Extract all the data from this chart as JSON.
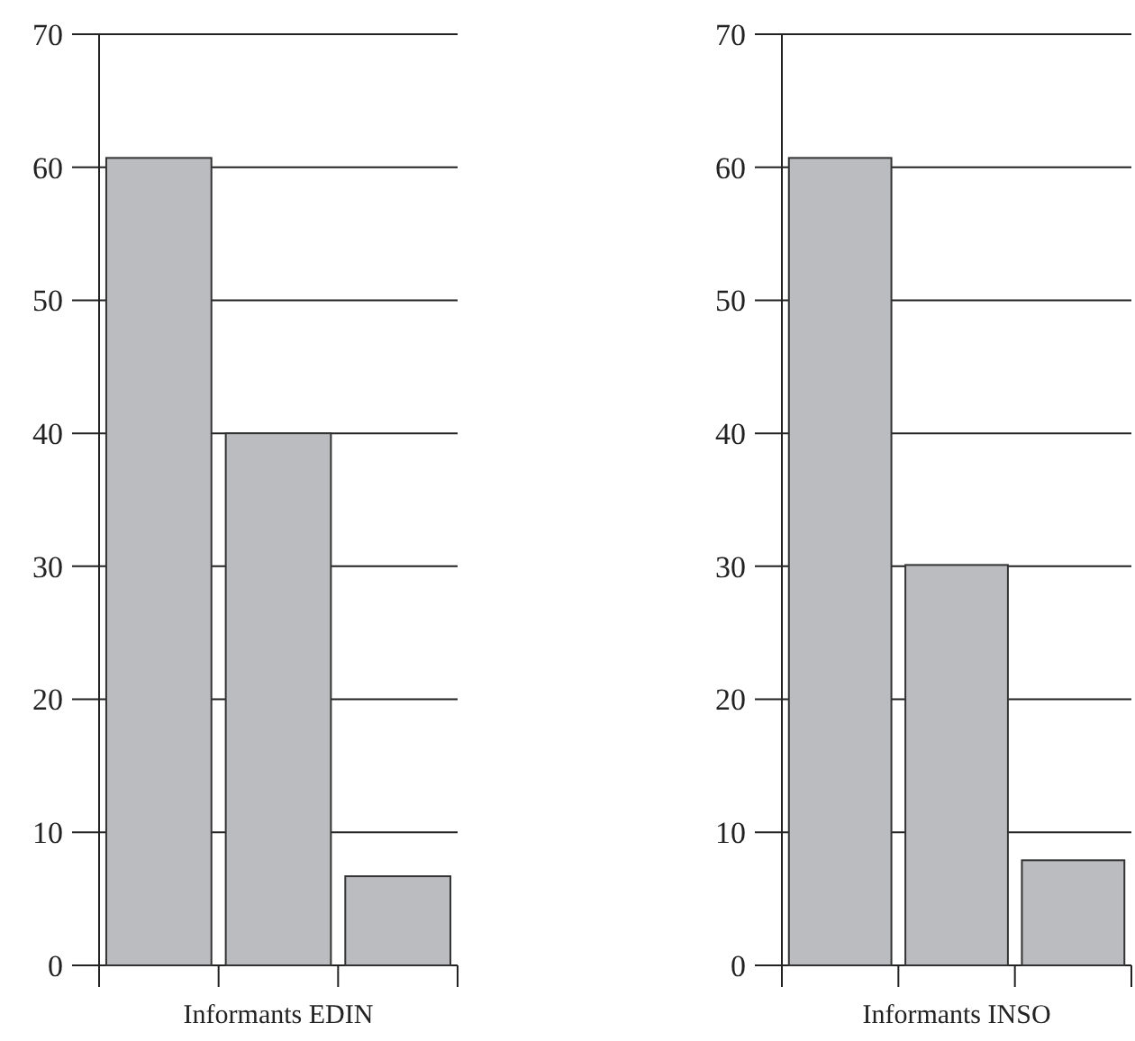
{
  "chart_data": [
    {
      "type": "bar",
      "xlabel": "Informants EDIN",
      "categories": [
        null,
        null,
        null
      ],
      "values": [
        60.7,
        40,
        6.7
      ],
      "color": "#bbbcc0",
      "ylim": [
        0,
        70
      ],
      "yticks": [
        0,
        10,
        20,
        30,
        40,
        50,
        60,
        70
      ],
      "grid": "y"
    },
    {
      "type": "bar",
      "xlabel": "Informants INSO",
      "categories": [
        null,
        null,
        null
      ],
      "values": [
        60.7,
        30.1,
        7.9
      ],
      "color": "#bbbcc0",
      "ylim": [
        0,
        70
      ],
      "yticks": [
        0,
        10,
        20,
        30,
        40,
        50,
        60,
        70
      ],
      "grid": "y"
    }
  ]
}
